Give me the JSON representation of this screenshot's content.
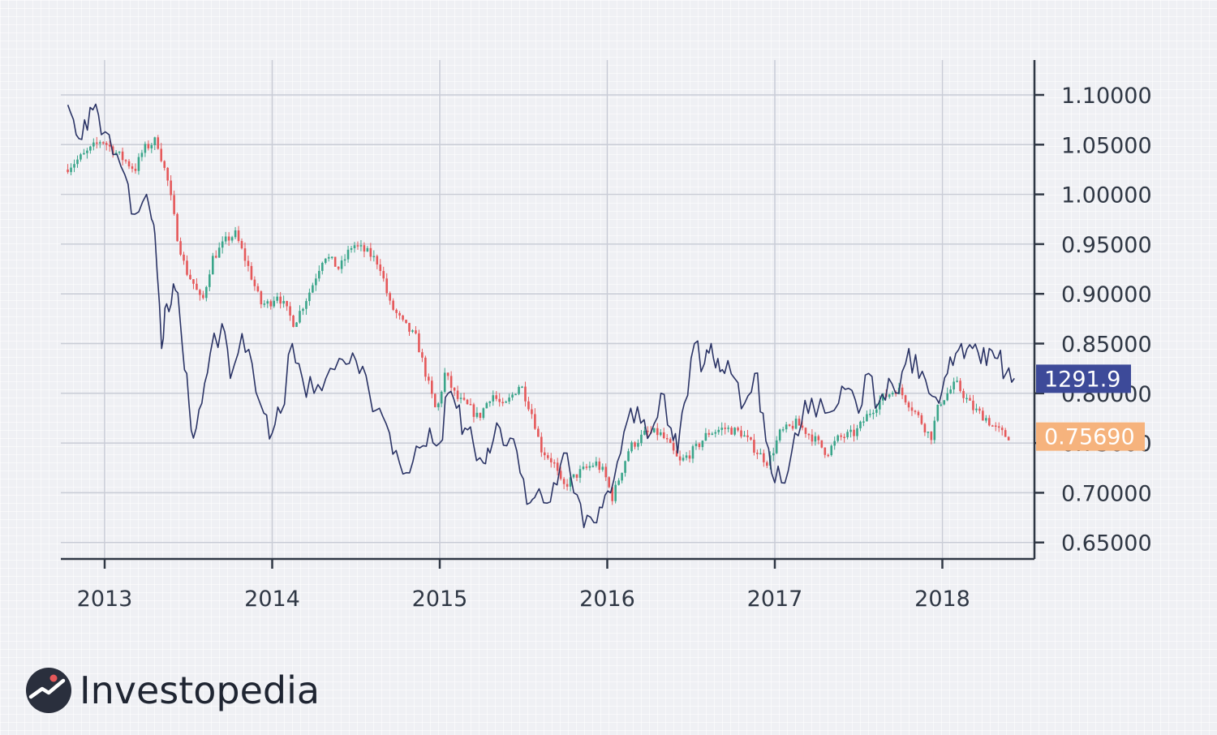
{
  "brand": {
    "name": "Investopedia",
    "logo_icon": "investopedia-logo-icon"
  },
  "colors": {
    "background": "#eff0f4",
    "gold_line": "#2a3365",
    "candle_up": "#3aa58a",
    "candle_down": "#e5585a",
    "gold_tag": "#3d4a99",
    "aud_tag": "#f6b37d",
    "axis": "#2f3744",
    "grid": "#c9ccd6"
  },
  "price_tags": {
    "gold": {
      "label": "1291.9",
      "value": 0.815
    },
    "audusd": {
      "label": "0.75690",
      "value": 0.7569
    }
  },
  "chart_data": {
    "type": "candlestick+line",
    "title": "",
    "xlabel": "",
    "ylabel": "",
    "x_tick_labels": [
      "2013",
      "2014",
      "2015",
      "2016",
      "2017",
      "2018"
    ],
    "x_tick_years": [
      2013,
      2014,
      2015,
      2016,
      2017,
      2018
    ],
    "y_tick_labels": [
      "1.10000",
      "1.05000",
      "1.00000",
      "0.95000",
      "0.90000",
      "0.85000",
      "0.80000",
      "0.75000",
      "0.70000",
      "0.65000"
    ],
    "y_tick_values": [
      1.1,
      1.05,
      1.0,
      0.95,
      0.9,
      0.85,
      0.8,
      0.75,
      0.7,
      0.65
    ],
    "x_range": [
      2012.73,
      2018.55
    ],
    "y_range": [
      0.635,
      1.155
    ],
    "grid": true,
    "series": [
      {
        "kind": "candlestick",
        "x": [
          2012.78,
          2012.9,
          2013.0,
          2013.1,
          2013.2,
          2013.25,
          2013.33,
          2013.4,
          2013.45,
          2013.5,
          2013.55,
          2013.6,
          2013.66,
          2013.75,
          2013.8,
          2013.88,
          2013.95,
          2014.0,
          2014.05,
          2014.15,
          2014.25,
          2014.33,
          2014.42,
          2014.5,
          2014.6,
          2014.66,
          2014.72,
          2014.8,
          2014.88,
          2014.95,
          2015.0,
          2015.05,
          2015.12,
          2015.2,
          2015.25,
          2015.33,
          2015.4,
          2015.5,
          2015.58,
          2015.62,
          2015.7,
          2015.75,
          2015.85,
          2015.95,
          2016.0,
          2016.05,
          2016.15,
          2016.25,
          2016.33,
          2016.38,
          2016.45,
          2016.55,
          2016.62,
          2016.72,
          2016.82,
          2016.92,
          2016.98,
          2017.05,
          2017.15,
          2017.25,
          2017.33,
          2017.4,
          2017.5,
          2017.58,
          2017.66,
          2017.75,
          2017.82,
          2017.9,
          2017.95,
          2018.0,
          2018.05,
          2018.1,
          2018.2,
          2018.28,
          2018.33,
          2018.4
        ],
        "values": [
          1.025,
          1.04,
          1.055,
          1.04,
          1.025,
          1.045,
          1.055,
          1.01,
          0.96,
          0.925,
          0.91,
          0.89,
          0.935,
          0.955,
          0.96,
          0.925,
          0.89,
          0.89,
          0.9,
          0.87,
          0.905,
          0.94,
          0.925,
          0.95,
          0.94,
          0.93,
          0.89,
          0.87,
          0.855,
          0.81,
          0.78,
          0.82,
          0.795,
          0.785,
          0.775,
          0.8,
          0.785,
          0.81,
          0.775,
          0.745,
          0.73,
          0.705,
          0.72,
          0.73,
          0.72,
          0.695,
          0.745,
          0.76,
          0.76,
          0.75,
          0.73,
          0.745,
          0.76,
          0.765,
          0.76,
          0.74,
          0.73,
          0.76,
          0.77,
          0.755,
          0.74,
          0.755,
          0.76,
          0.78,
          0.795,
          0.805,
          0.79,
          0.77,
          0.755,
          0.79,
          0.8,
          0.81,
          0.785,
          0.775,
          0.765,
          0.7569
        ]
      },
      {
        "kind": "line",
        "x": [
          2012.78,
          2012.83,
          2012.88,
          2012.93,
          2012.98,
          2013.05,
          2013.12,
          2013.18,
          2013.25,
          2013.28,
          2013.3,
          2013.34,
          2013.37,
          2013.41,
          2013.45,
          2013.49,
          2013.53,
          2013.58,
          2013.63,
          2013.7,
          2013.75,
          2013.82,
          2013.88,
          2013.95,
          2014.0,
          2014.05,
          2014.12,
          2014.18,
          2014.25,
          2014.32,
          2014.4,
          2014.46,
          2014.52,
          2014.58,
          2014.64,
          2014.7,
          2014.76,
          2014.82,
          2014.88,
          2014.94,
          2015.0,
          2015.05,
          2015.1,
          2015.15,
          2015.2,
          2015.26,
          2015.3,
          2015.36,
          2015.42,
          2015.48,
          2015.54,
          2015.58,
          2015.62,
          2015.68,
          2015.74,
          2015.8,
          2015.86,
          2015.92,
          2015.97,
          2016.02,
          2016.08,
          2016.14,
          2016.2,
          2016.26,
          2016.32,
          2016.38,
          2016.42,
          2016.46,
          2016.52,
          2016.58,
          2016.62,
          2016.66,
          2016.7,
          2016.76,
          2016.82,
          2016.88,
          2016.93,
          2016.98,
          2017.04,
          2017.1,
          2017.16,
          2017.22,
          2017.3,
          2017.38,
          2017.44,
          2017.5,
          2017.56,
          2017.62,
          2017.68,
          2017.74,
          2017.8,
          2017.86,
          2017.92,
          2017.98,
          2018.03,
          2018.08,
          2018.13,
          2018.18,
          2018.23,
          2018.28,
          2018.33,
          2018.38,
          2018.43
        ],
        "values": [
          1.09,
          1.06,
          1.075,
          1.085,
          1.06,
          1.04,
          1.02,
          0.98,
          1.0,
          0.975,
          0.96,
          0.845,
          0.89,
          0.91,
          0.875,
          0.82,
          0.755,
          0.79,
          0.84,
          0.87,
          0.815,
          0.86,
          0.83,
          0.78,
          0.76,
          0.78,
          0.85,
          0.815,
          0.8,
          0.815,
          0.835,
          0.83,
          0.82,
          0.8,
          0.785,
          0.76,
          0.73,
          0.72,
          0.745,
          0.765,
          0.75,
          0.8,
          0.785,
          0.765,
          0.75,
          0.73,
          0.74,
          0.765,
          0.755,
          0.72,
          0.69,
          0.7,
          0.69,
          0.71,
          0.74,
          0.7,
          0.665,
          0.67,
          0.685,
          0.7,
          0.74,
          0.785,
          0.77,
          0.76,
          0.8,
          0.765,
          0.74,
          0.79,
          0.85,
          0.83,
          0.85,
          0.835,
          0.82,
          0.815,
          0.79,
          0.82,
          0.78,
          0.72,
          0.71,
          0.74,
          0.77,
          0.795,
          0.78,
          0.79,
          0.805,
          0.78,
          0.82,
          0.79,
          0.815,
          0.8,
          0.845,
          0.815,
          0.8,
          0.79,
          0.82,
          0.84,
          0.835,
          0.845,
          0.83,
          0.845,
          0.835,
          0.82,
          0.815
        ]
      }
    ]
  }
}
